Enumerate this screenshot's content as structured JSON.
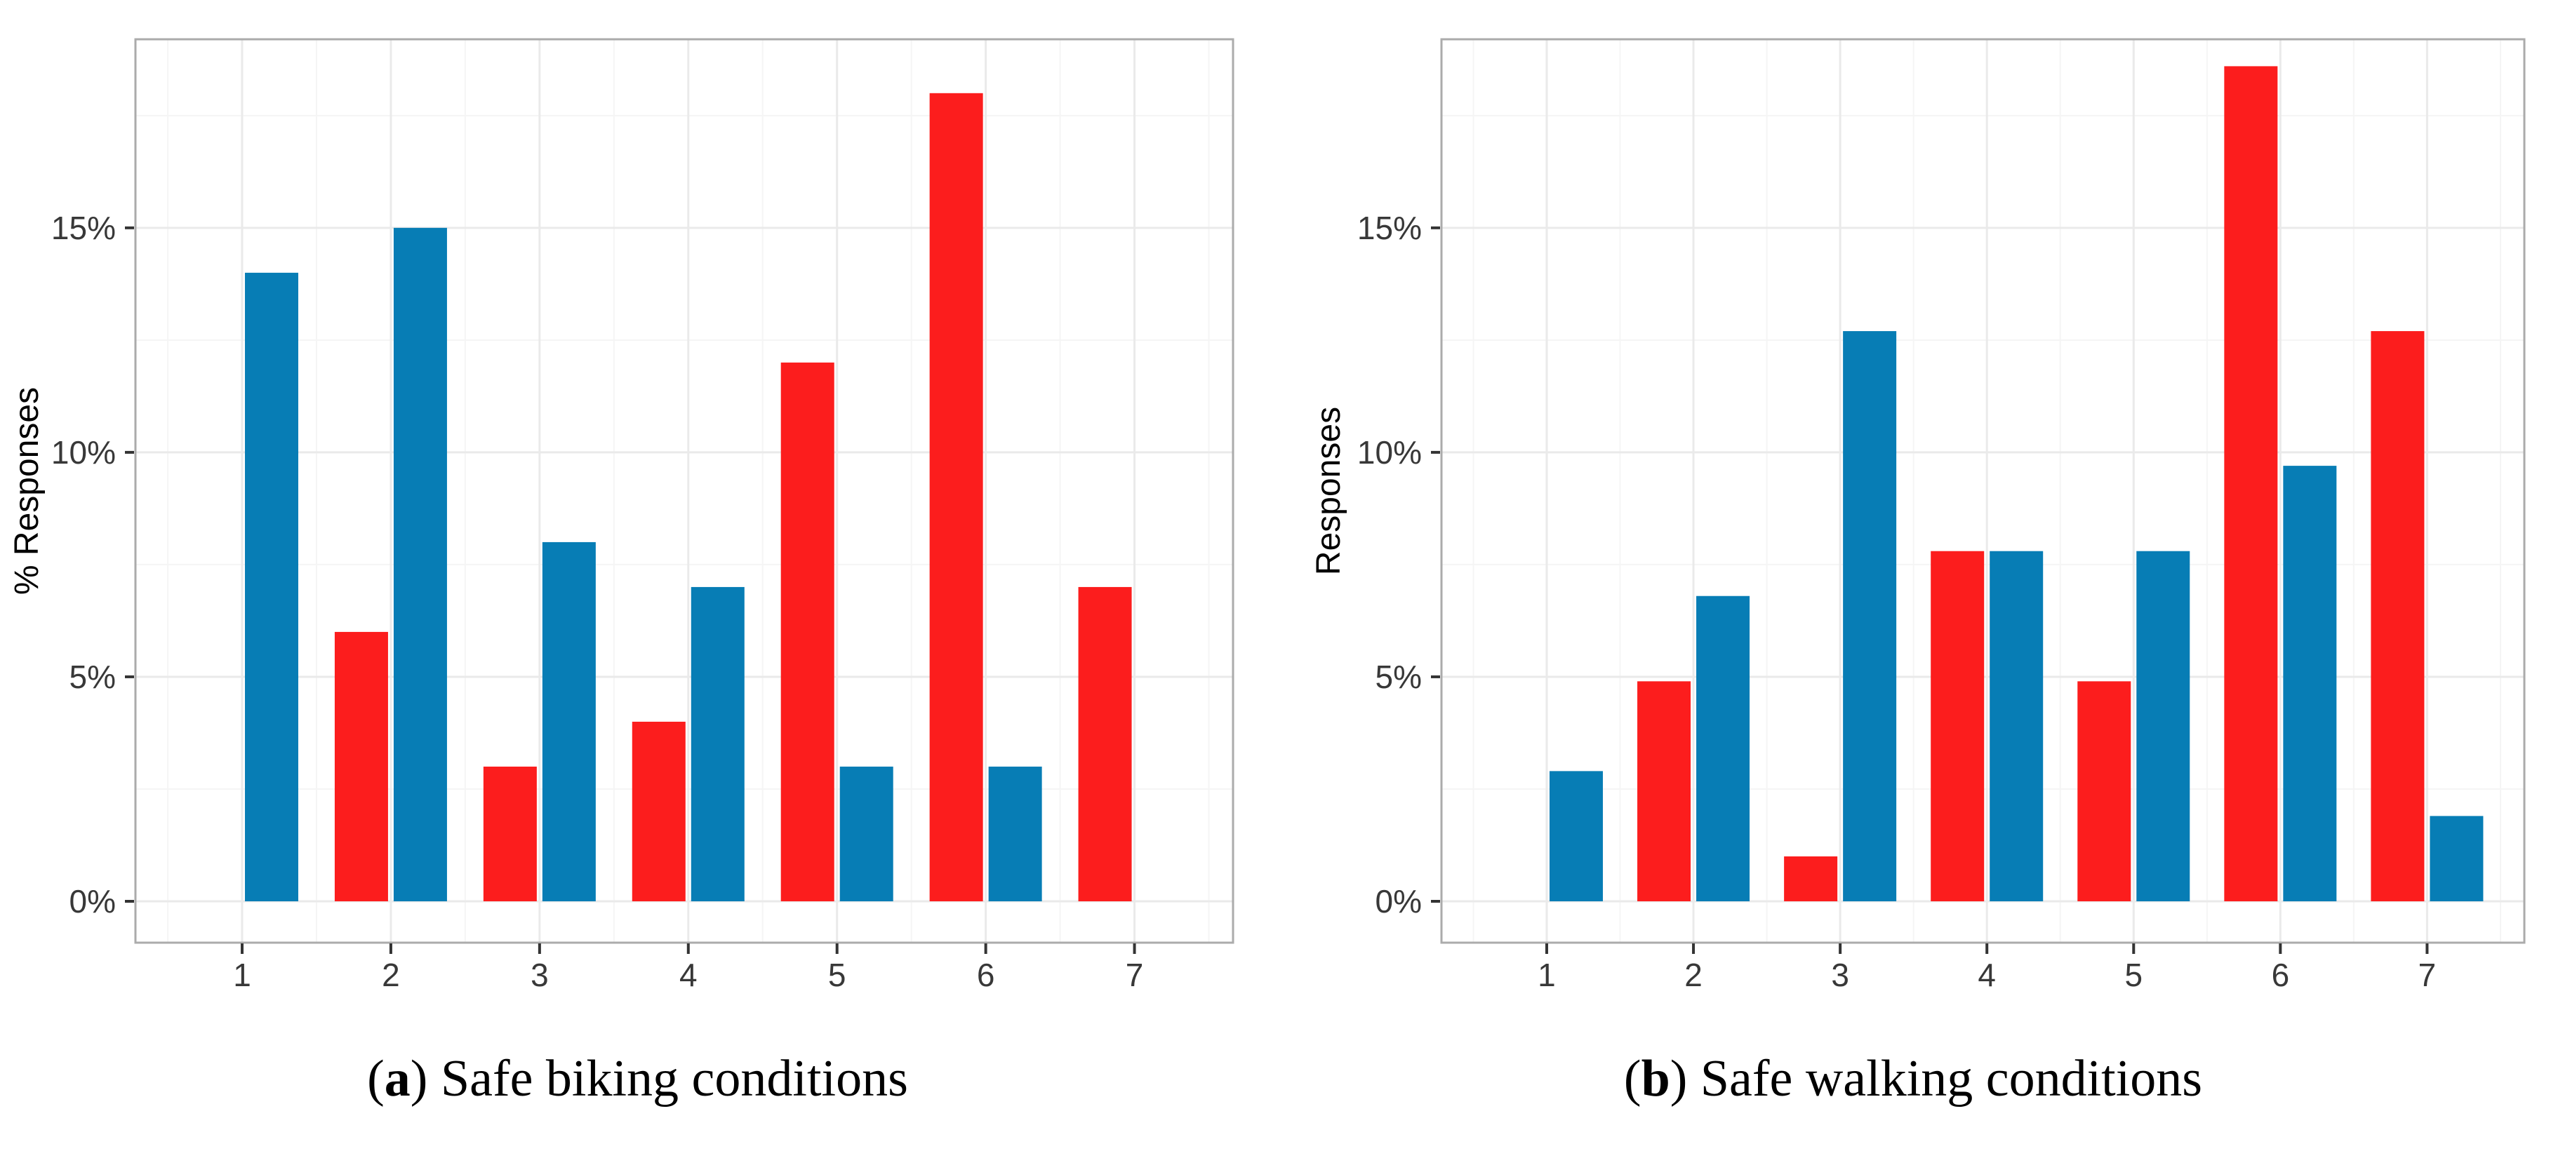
{
  "figure": {
    "background": "#FFFFFF",
    "caption_paren_open": "(",
    "caption_paren_close": ") "
  },
  "style": {
    "panel_background": "#FFFFFF",
    "panel_border": "#ABABAB",
    "grid_major": "#EAEAEA",
    "grid_minor": "#F5F5F5",
    "tick_mark": "#333333",
    "tick_label_color": "#383838",
    "axis_title_color": "#000000",
    "bar_red": "#FC1D1D",
    "bar_blue": "#077DB5"
  },
  "chart_data": [
    {
      "type": "bar",
      "caption_letter": "a",
      "caption_text": "Safe biking conditions",
      "xlabel": "",
      "ylabel": "% Responses",
      "categories": [
        "1",
        "2",
        "3",
        "4",
        "5",
        "6",
        "7"
      ],
      "series": [
        {
          "name": "red",
          "color": "#FC1D1D",
          "values": [
            0,
            6,
            3,
            4,
            12,
            18,
            7
          ]
        },
        {
          "name": "blue",
          "color": "#077DB5",
          "values": [
            14,
            15,
            8,
            7,
            3,
            3,
            0
          ]
        }
      ],
      "yticks": [
        {
          "value": 0,
          "label": "0%"
        },
        {
          "value": 5,
          "label": "5%"
        },
        {
          "value": 10,
          "label": "10%"
        },
        {
          "value": 15,
          "label": "15%"
        }
      ],
      "yticks_minor": [
        2.5,
        7.5,
        12.5,
        17.5
      ],
      "ylim": [
        0,
        19.2
      ],
      "grid": "major+minor",
      "legend": "none"
    },
    {
      "type": "bar",
      "caption_letter": "b",
      "caption_text": "Safe walking conditions",
      "xlabel": "",
      "ylabel": "Responses",
      "categories": [
        "1",
        "2",
        "3",
        "4",
        "5",
        "6",
        "7"
      ],
      "series": [
        {
          "name": "red",
          "color": "#FC1D1D",
          "values": [
            0,
            4.9,
            1,
            7.8,
            4.9,
            18.6,
            12.7
          ]
        },
        {
          "name": "blue",
          "color": "#077DB5",
          "values": [
            2.9,
            6.8,
            12.7,
            7.8,
            7.8,
            9.7,
            1.9
          ]
        }
      ],
      "yticks": [
        {
          "value": 0,
          "label": "0%"
        },
        {
          "value": 5,
          "label": "5%"
        },
        {
          "value": 10,
          "label": "10%"
        },
        {
          "value": 15,
          "label": "15%"
        }
      ],
      "yticks_minor": [
        2.5,
        7.5,
        12.5,
        17.5
      ],
      "ylim": [
        0,
        19.2
      ],
      "grid": "major+minor",
      "legend": "none"
    }
  ]
}
